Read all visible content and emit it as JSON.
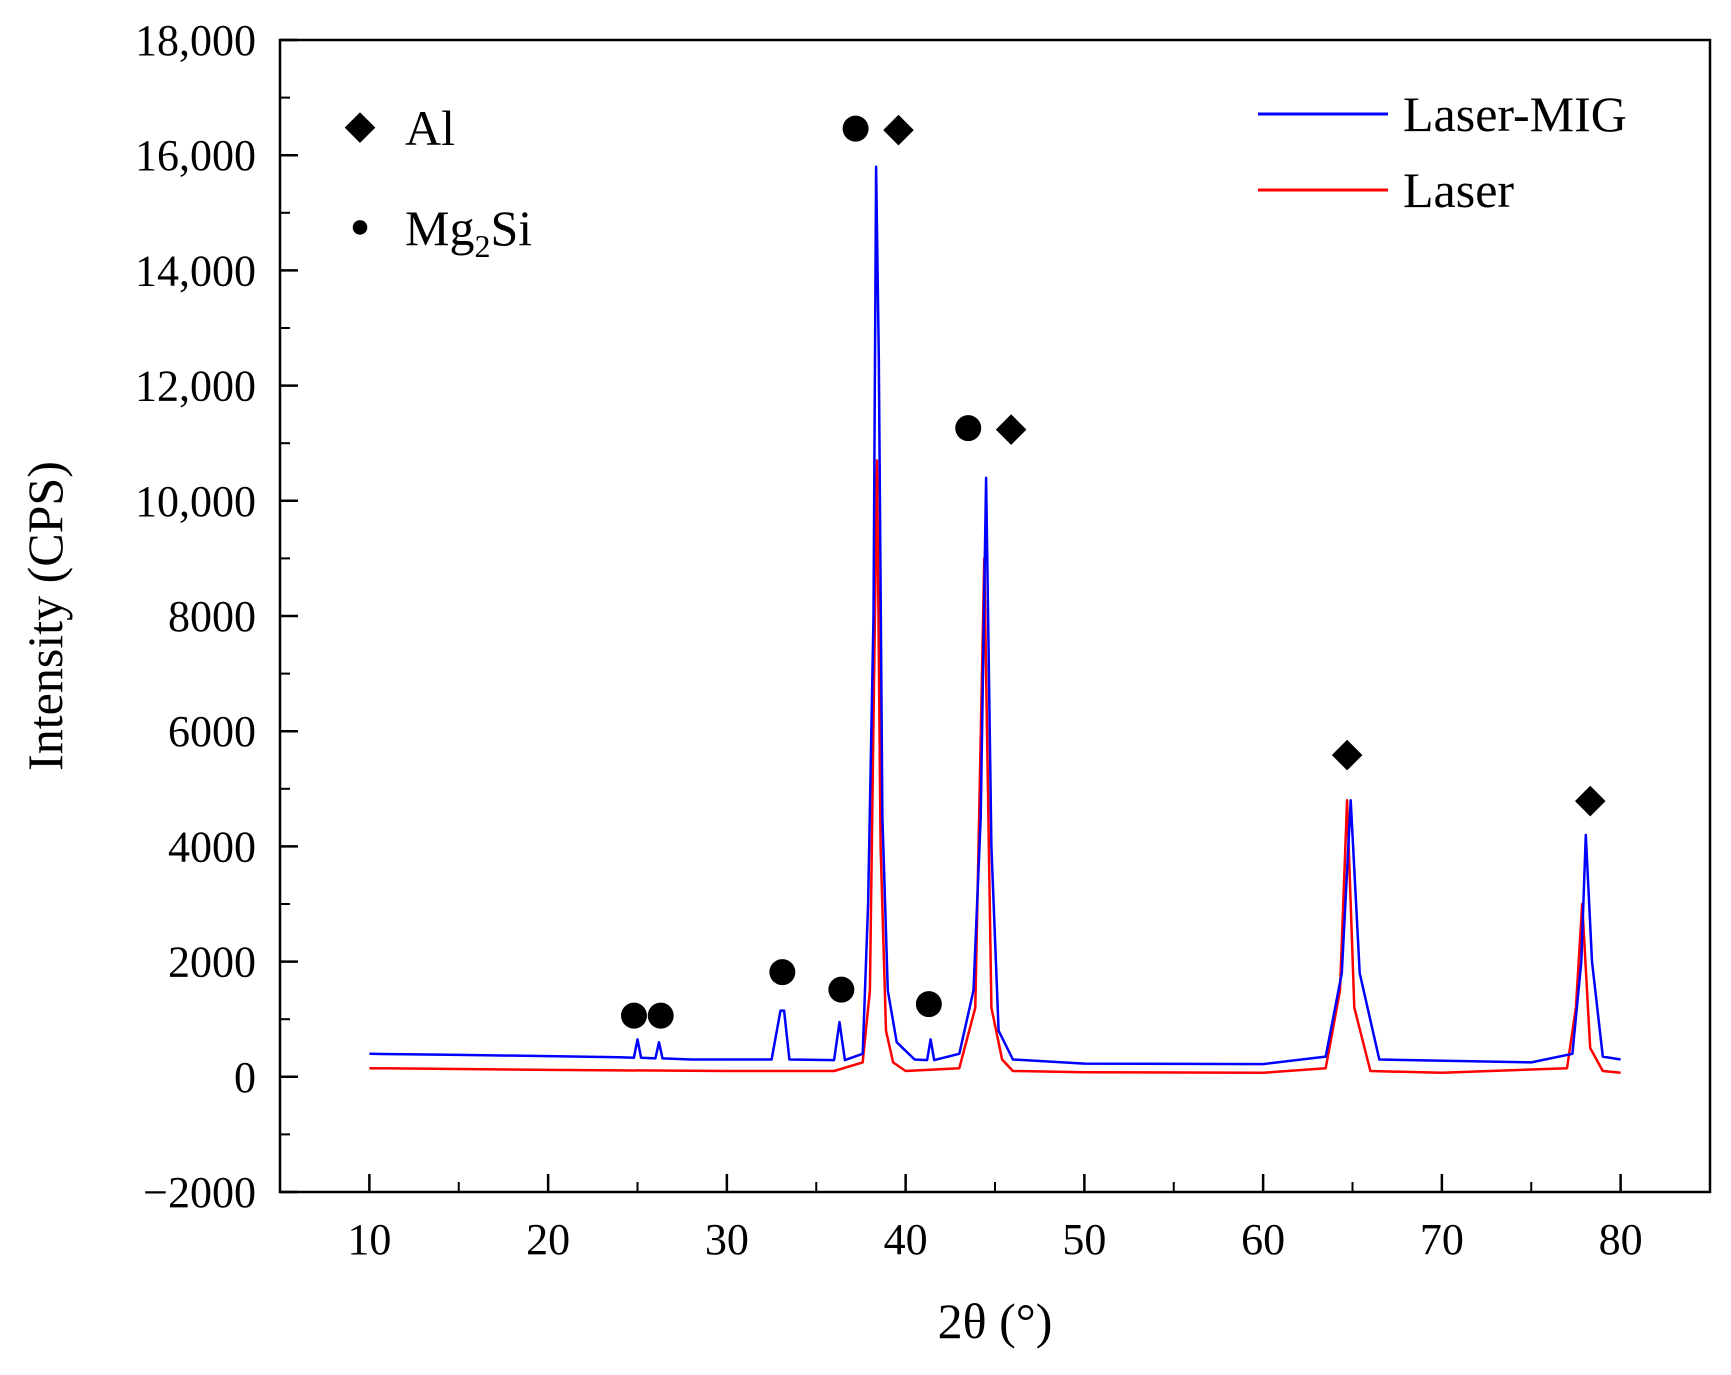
{
  "chart_data": {
    "type": "line",
    "title": "",
    "xlabel": "2θ (°)",
    "ylabel": "Intensity (CPS)",
    "xlim": [
      5,
      85
    ],
    "ylim": [
      -2000,
      18000
    ],
    "x_ticks": [
      10,
      20,
      30,
      40,
      50,
      60,
      70,
      80
    ],
    "x_tick_labels": [
      "10",
      "20",
      "30",
      "40",
      "50",
      "60",
      "70",
      "80"
    ],
    "y_ticks": [
      -2000,
      0,
      2000,
      4000,
      6000,
      8000,
      10000,
      12000,
      14000,
      16000,
      18000
    ],
    "y_tick_labels": [
      "−2000",
      "0",
      "2000",
      "4000",
      "6000",
      "8000",
      "10,000",
      "12,000",
      "14,000",
      "16,000",
      "18,000"
    ],
    "grid": false,
    "legend_position": "top-right",
    "series": [
      {
        "name": "Laser-MIG",
        "color": "#0000ff",
        "x": [
          10,
          15,
          20,
          24,
          24.8,
          25,
          25.2,
          26,
          26.2,
          26.4,
          28,
          32.5,
          33,
          33.2,
          33.5,
          36,
          36.3,
          36.6,
          37.6,
          37.9,
          38.2,
          38.35,
          38.5,
          38.7,
          39.0,
          39.5,
          40.5,
          41.2,
          41.4,
          41.6,
          43,
          43.8,
          44.2,
          44.5,
          44.8,
          45.2,
          46,
          50,
          60,
          63.5,
          64.4,
          64.9,
          65.4,
          66.5,
          75,
          77.3,
          77.8,
          78.05,
          78.4,
          79,
          80
        ],
        "y": [
          400,
          380,
          360,
          340,
          330,
          650,
          330,
          320,
          600,
          320,
          300,
          300,
          1150,
          1150,
          300,
          290,
          950,
          290,
          400,
          3000,
          8000,
          15800,
          12500,
          4500,
          1500,
          600,
          300,
          290,
          650,
          290,
          400,
          1500,
          4500,
          10400,
          4000,
          800,
          300,
          230,
          220,
          350,
          1800,
          4800,
          1800,
          300,
          250,
          400,
          2000,
          4200,
          2000,
          350,
          300
        ]
      },
      {
        "name": "Laser",
        "color": "#ff0000",
        "x": [
          10,
          20,
          30,
          36,
          37.6,
          38.0,
          38.4,
          38.6,
          38.9,
          39.3,
          40,
          43,
          43.9,
          44.4,
          44.8,
          45.4,
          46,
          50,
          60,
          63.5,
          64.3,
          64.7,
          65.1,
          66,
          70,
          77,
          77.5,
          77.85,
          78.3,
          79,
          80
        ],
        "y": [
          150,
          120,
          100,
          100,
          250,
          1500,
          10700,
          4000,
          800,
          250,
          100,
          150,
          1200,
          9000,
          1200,
          300,
          100,
          80,
          70,
          150,
          1500,
          4800,
          1200,
          100,
          70,
          150,
          1200,
          3000,
          500,
          100,
          70
        ]
      }
    ],
    "annotations": [
      {
        "symbol": "●",
        "x": 37.2,
        "y": 16500,
        "label": "Mg2Si"
      },
      {
        "symbol": "◆",
        "x": 39.6,
        "y": 16500,
        "label": "Al"
      },
      {
        "symbol": "●",
        "x": 43.5,
        "y": 11300,
        "label": "Mg2Si"
      },
      {
        "symbol": "◆",
        "x": 45.9,
        "y": 11300,
        "label": "Al"
      },
      {
        "symbol": "●",
        "x": 24.8,
        "y": 1100,
        "label": "Mg2Si"
      },
      {
        "symbol": "●",
        "x": 26.3,
        "y": 1100,
        "label": "Mg2Si"
      },
      {
        "symbol": "●",
        "x": 33.1,
        "y": 1850,
        "label": "Mg2Si"
      },
      {
        "symbol": "●",
        "x": 36.4,
        "y": 1550,
        "label": "Mg2Si"
      },
      {
        "symbol": "●",
        "x": 41.3,
        "y": 1300,
        "label": "Mg2Si"
      },
      {
        "symbol": "◆",
        "x": 64.7,
        "y": 5650,
        "label": "Al"
      },
      {
        "symbol": "◆",
        "x": 78.3,
        "y": 4850,
        "label": "Al"
      }
    ],
    "phase_legend": [
      {
        "symbol": "◆",
        "label": "Al",
        "sub": ""
      },
      {
        "symbol": "●",
        "label_main": "Mg",
        "label_sub": "2",
        "label_tail": "Si"
      }
    ]
  }
}
